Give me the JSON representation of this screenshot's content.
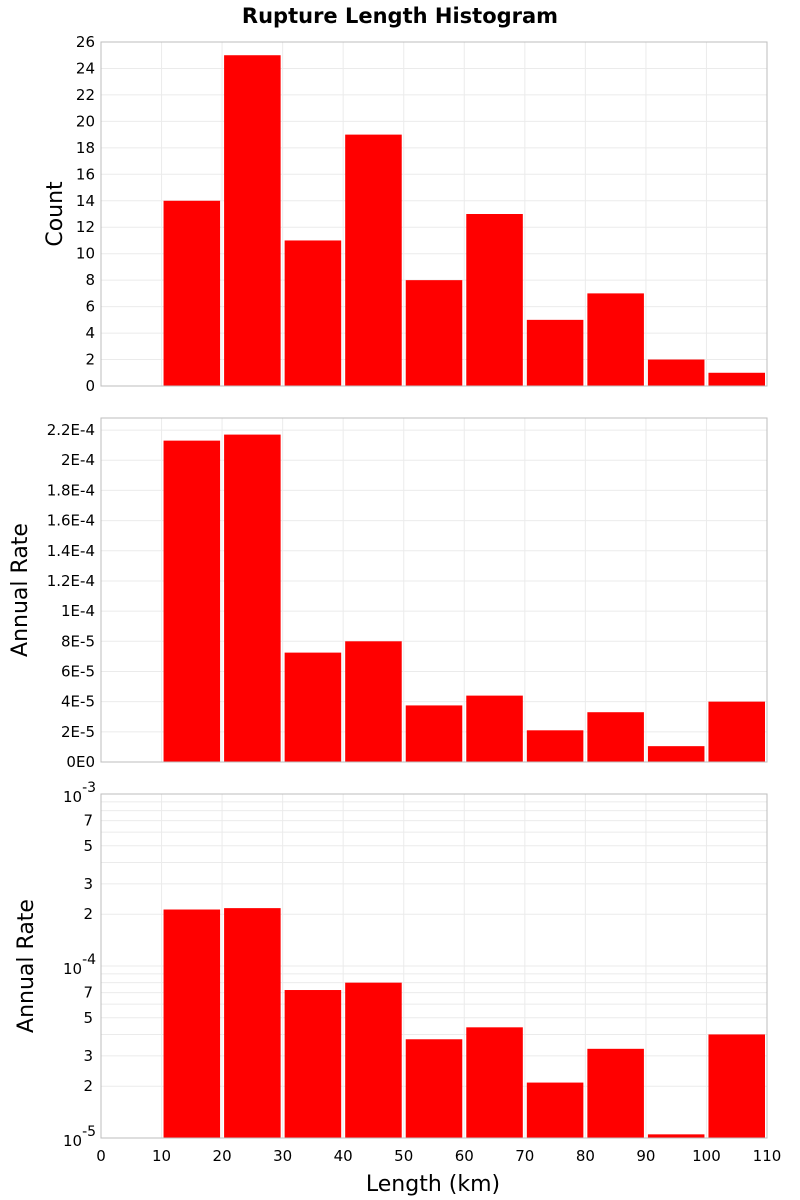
{
  "chart_data": {
    "type": "bar",
    "title": "Rupture Length Histogram",
    "xlabel": "Length (km)",
    "xlim": [
      0,
      110
    ],
    "xticks": [
      0,
      10,
      20,
      30,
      40,
      50,
      60,
      70,
      80,
      90,
      100,
      110
    ],
    "xtick_labels": [
      "0",
      "10",
      "20",
      "30",
      "40",
      "50",
      "60",
      "70",
      "80",
      "90",
      "100",
      "110"
    ],
    "bin_width": 10,
    "bin_starts": [
      10,
      20,
      30,
      40,
      50,
      60,
      70,
      80,
      90,
      100
    ],
    "bar_color": "#ff0000",
    "grid": true,
    "panels": [
      {
        "name": "count",
        "ylabel": "Count",
        "scale": "linear",
        "ylim": [
          0,
          26
        ],
        "yticks": [
          0,
          2,
          4,
          6,
          8,
          10,
          12,
          14,
          16,
          18,
          20,
          22,
          24,
          26
        ],
        "ytick_labels": [
          "0",
          "2",
          "4",
          "6",
          "8",
          "10",
          "12",
          "14",
          "16",
          "18",
          "20",
          "22",
          "24",
          "26"
        ],
        "values": [
          14,
          25,
          11,
          19,
          8,
          13,
          5,
          7,
          2,
          1
        ]
      },
      {
        "name": "annual-rate-linear",
        "ylabel": "Annual Rate",
        "scale": "linear",
        "ylim": [
          0,
          0.000228
        ],
        "yticks": [
          0,
          2e-05,
          4e-05,
          6e-05,
          8e-05,
          0.0001,
          0.00012,
          0.00014,
          0.00016,
          0.00018,
          0.0002,
          0.00022
        ],
        "ytick_labels": [
          "0E0",
          "2E-5",
          "4E-5",
          "6E-5",
          "8E-5",
          "1E-4",
          "1.2E-4",
          "1.4E-4",
          "1.6E-4",
          "1.8E-4",
          "2E-4",
          "2.2E-4"
        ],
        "values": [
          0.000213,
          0.000217,
          7.25e-05,
          8e-05,
          3.75e-05,
          4.4e-05,
          2.1e-05,
          3.3e-05,
          1.05e-05,
          4e-05
        ]
      },
      {
        "name": "annual-rate-log",
        "ylabel": "Annual Rate",
        "scale": "log",
        "ylim": [
          1e-05,
          0.001
        ],
        "decades": [
          {
            "value": 1e-05,
            "base": "10",
            "exp": "-5"
          },
          {
            "value": 0.0001,
            "base": "10",
            "exp": "-4"
          },
          {
            "value": 0.001,
            "base": "10",
            "exp": "-3"
          }
        ],
        "minor_labeled": [
          "2",
          "3",
          "5",
          "7"
        ],
        "values": [
          0.000213,
          0.000217,
          7.25e-05,
          8e-05,
          3.75e-05,
          4.4e-05,
          2.1e-05,
          3.3e-05,
          1.05e-05,
          4e-05
        ]
      }
    ]
  }
}
